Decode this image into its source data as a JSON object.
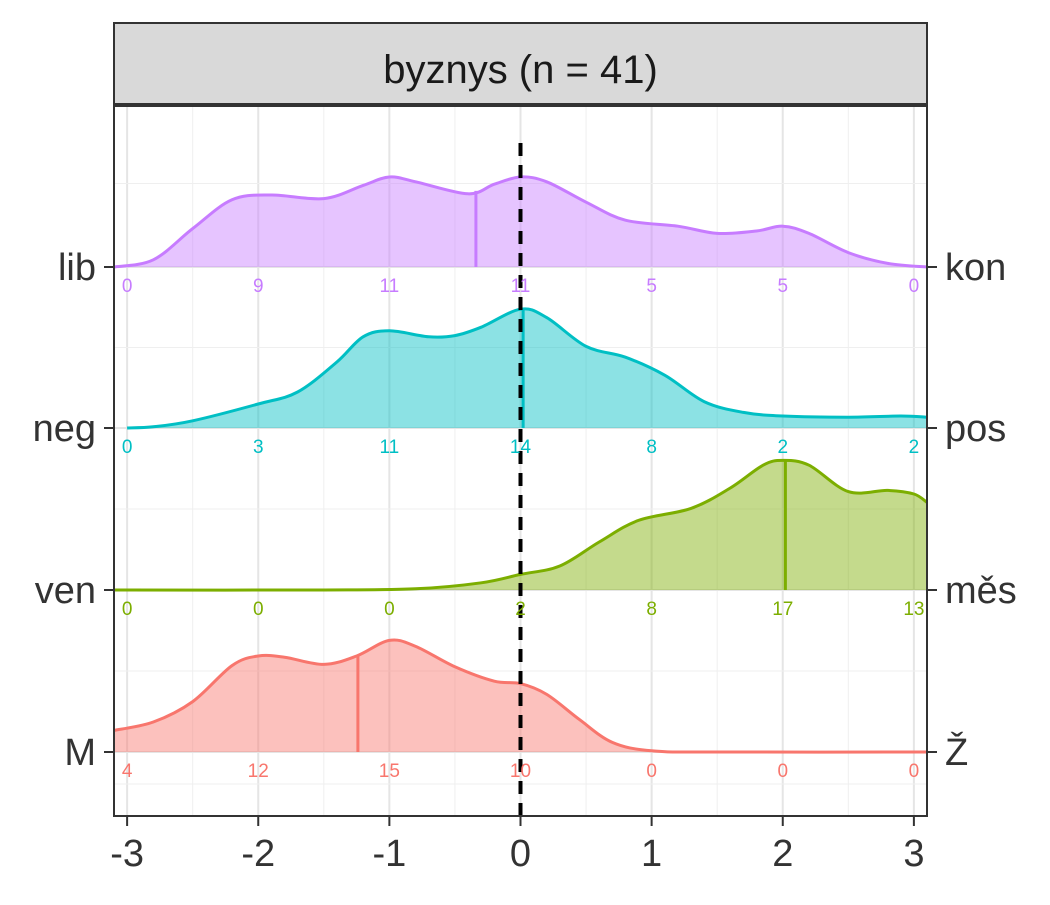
{
  "chart_data": {
    "type": "area",
    "subtype": "ridgeline-density",
    "facet_title": "byznys (n = 41)",
    "x_ticks": [
      -3,
      -2,
      -1,
      0,
      1,
      2,
      3
    ],
    "x_tick_labels": [
      "-3",
      "-2",
      "-1",
      "0",
      "1",
      "2",
      "3"
    ],
    "xlim": [
      -3.1,
      3.1
    ],
    "reference_line_x": 0,
    "count_positions": [
      -3,
      -2,
      -1,
      0,
      1,
      2,
      3
    ],
    "grid": true,
    "series": [
      {
        "left_label": "M",
        "right_label": "Ž",
        "color": "#F8766D",
        "mean": -1.24,
        "counts": [
          4,
          12,
          15,
          10,
          0,
          0,
          0
        ],
        "density": [
          [
            -3.1,
            0.18
          ],
          [
            -2.8,
            0.25
          ],
          [
            -2.5,
            0.42
          ],
          [
            -2.2,
            0.72
          ],
          [
            -2.0,
            0.8
          ],
          [
            -1.8,
            0.79
          ],
          [
            -1.5,
            0.73
          ],
          [
            -1.25,
            0.8
          ],
          [
            -1.0,
            0.93
          ],
          [
            -0.8,
            0.88
          ],
          [
            -0.5,
            0.71
          ],
          [
            -0.2,
            0.59
          ],
          [
            0.0,
            0.57
          ],
          [
            0.2,
            0.48
          ],
          [
            0.45,
            0.27
          ],
          [
            0.7,
            0.08
          ],
          [
            1.0,
            0.01
          ],
          [
            1.5,
            0.0
          ],
          [
            3.1,
            0.0
          ]
        ]
      },
      {
        "left_label": "ven",
        "right_label": "měs",
        "color": "#7CAE00",
        "mean": 2.02,
        "counts": [
          0,
          0,
          0,
          2,
          8,
          17,
          13
        ],
        "density": [
          [
            -3.1,
            0.0
          ],
          [
            -1.5,
            0.0
          ],
          [
            -0.8,
            0.01
          ],
          [
            -0.3,
            0.06
          ],
          [
            0.0,
            0.13
          ],
          [
            0.3,
            0.2
          ],
          [
            0.6,
            0.4
          ],
          [
            0.9,
            0.58
          ],
          [
            1.3,
            0.68
          ],
          [
            1.6,
            0.85
          ],
          [
            1.85,
            1.04
          ],
          [
            2.0,
            1.08
          ],
          [
            2.2,
            1.04
          ],
          [
            2.5,
            0.82
          ],
          [
            2.8,
            0.83
          ],
          [
            3.0,
            0.8
          ],
          [
            3.1,
            0.73
          ]
        ]
      },
      {
        "left_label": "neg",
        "right_label": "pos",
        "color": "#00BFC4",
        "mean": 0.02,
        "counts": [
          0,
          3,
          11,
          14,
          8,
          2,
          2
        ],
        "density": [
          [
            -3.0,
            0.0
          ],
          [
            -2.8,
            0.01
          ],
          [
            -2.5,
            0.06
          ],
          [
            -2.0,
            0.2
          ],
          [
            -1.7,
            0.3
          ],
          [
            -1.4,
            0.55
          ],
          [
            -1.2,
            0.76
          ],
          [
            -1.0,
            0.81
          ],
          [
            -0.7,
            0.76
          ],
          [
            -0.5,
            0.77
          ],
          [
            -0.3,
            0.84
          ],
          [
            0.0,
            0.99
          ],
          [
            0.2,
            0.92
          ],
          [
            0.5,
            0.68
          ],
          [
            0.8,
            0.59
          ],
          [
            1.1,
            0.44
          ],
          [
            1.4,
            0.22
          ],
          [
            1.7,
            0.13
          ],
          [
            2.0,
            0.1
          ],
          [
            2.5,
            0.09
          ],
          [
            2.9,
            0.1
          ],
          [
            3.1,
            0.09
          ]
        ]
      },
      {
        "left_label": "lib",
        "right_label": "kon",
        "color": "#C77CFF",
        "mean": -0.34,
        "counts": [
          0,
          9,
          11,
          11,
          5,
          5,
          0
        ],
        "density": [
          [
            -3.1,
            0.0
          ],
          [
            -2.8,
            0.06
          ],
          [
            -2.5,
            0.32
          ],
          [
            -2.2,
            0.56
          ],
          [
            -1.9,
            0.6
          ],
          [
            -1.5,
            0.57
          ],
          [
            -1.2,
            0.68
          ],
          [
            -1.0,
            0.75
          ],
          [
            -0.8,
            0.71
          ],
          [
            -0.4,
            0.61
          ],
          [
            -0.2,
            0.69
          ],
          [
            0.0,
            0.75
          ],
          [
            0.2,
            0.71
          ],
          [
            0.5,
            0.54
          ],
          [
            0.8,
            0.39
          ],
          [
            1.2,
            0.34
          ],
          [
            1.5,
            0.28
          ],
          [
            1.8,
            0.3
          ],
          [
            2.0,
            0.34
          ],
          [
            2.2,
            0.28
          ],
          [
            2.5,
            0.12
          ],
          [
            2.8,
            0.03
          ],
          [
            3.1,
            0.0
          ]
        ]
      }
    ]
  }
}
